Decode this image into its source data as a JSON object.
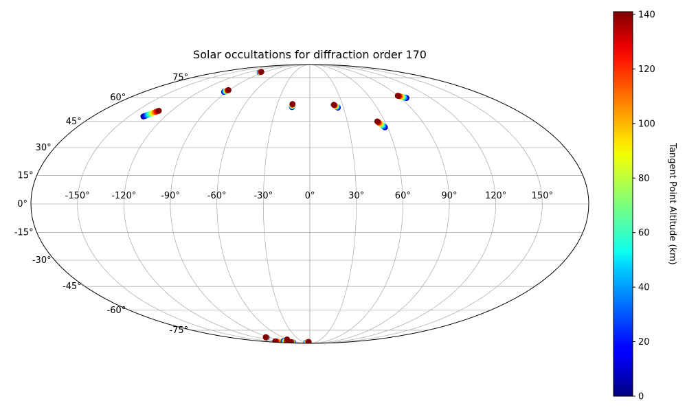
{
  "chart_data": {
    "type": "scatter",
    "projection": "mollweide",
    "title": "Solar occultations for diffraction order 170",
    "lon_ticks": [
      -150,
      -120,
      -90,
      -60,
      -30,
      0,
      30,
      60,
      90,
      120,
      150
    ],
    "lon_tick_labels": [
      "-150°",
      "-120°",
      "-90°",
      "-60°",
      "-30°",
      "0°",
      "30°",
      "60°",
      "90°",
      "120°",
      "150°"
    ],
    "lat_ticks": [
      75,
      60,
      45,
      30,
      15,
      0,
      -15,
      -30,
      -45,
      -60,
      -75
    ],
    "lat_tick_labels": [
      "75°",
      "60°",
      "45°",
      "30°",
      "15°",
      "0°",
      "-15°",
      "-30°",
      "-45°",
      "-60°",
      "-75°"
    ],
    "grid": true,
    "colorbar": {
      "label": "Tangent Point Altitude (km)",
      "min": 0,
      "max": 141,
      "ticks": [
        0,
        20,
        40,
        60,
        80,
        100,
        120,
        140
      ],
      "tick_labels": [
        "0",
        "20",
        "40",
        "60",
        "80",
        "100",
        "120",
        "140"
      ],
      "colormap": "jet",
      "position": "right"
    },
    "occultations": [
      {
        "start": [
          -138,
          48.0
        ],
        "end": [
          -131,
          51.5
        ]
      },
      {
        "start": [
          -93,
          64.0
        ],
        "end": [
          -91,
          65.3
        ]
      },
      {
        "start": [
          -98,
          79.8
        ],
        "end": [
          -98,
          80.3
        ]
      },
      {
        "start": [
          -16,
          53.8
        ],
        "end": [
          -16,
          55.8
        ]
      },
      {
        "start": [
          25,
          53.5
        ],
        "end": [
          22,
          55.3
        ]
      },
      {
        "start": [
          58,
          41.5
        ],
        "end": [
          54,
          45.0
        ]
      },
      {
        "start": [
          96,
          59.8
        ],
        "end": [
          90,
          61.3
        ]
      },
      {
        "start": [
          -137,
          -87.8
        ],
        "end": [
          -132,
          -86.3
        ]
      },
      {
        "start": [
          -97,
          -81.8
        ],
        "end": [
          -97,
          -81.5
        ]
      },
      {
        "start": [
          -95,
          -86.0
        ],
        "end": [
          -90,
          -86.6
        ]
      },
      {
        "start": [
          -93,
          -87.9
        ],
        "end": [
          -91,
          -87.4
        ]
      },
      {
        "start": [
          -63,
          -84.0
        ],
        "end": [
          -63,
          -84.0
        ]
      },
      {
        "start": [
          -20,
          -88.0
        ],
        "end": [
          -5,
          -87.2
        ]
      }
    ]
  }
}
